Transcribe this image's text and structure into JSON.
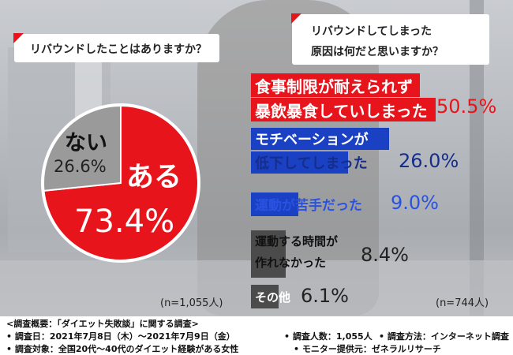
{
  "question_left": "リバウンドしたことはありますか？",
  "question_right_line1": "リバウンドしてしまった",
  "question_right_line2": "原因は何だと思いますか？",
  "colors": {
    "accent_red": "#e8141c",
    "blue": "#1a40c4",
    "gray": "#9a9a9a",
    "dark_gray": "#4b4b4b",
    "title_blue": "#162e8a"
  },
  "chart_data": [
    {
      "type": "pie",
      "question": "リバウンドしたことはありますか？",
      "labels": [
        "ある",
        "ない"
      ],
      "values": [
        73.4,
        26.6
      ],
      "value_labels": [
        "73.4%",
        "26.6%"
      ],
      "n_label": "(n=1,055人)"
    },
    {
      "type": "bar",
      "question": "リバウンドしてしまった原因は何だと思いますか？",
      "categories": [
        "食事制限が耐えられず暴飲暴食していしまった",
        "モチベーションが低下してしまった",
        "運動が苦手だった",
        "運動する時間が作れなかった",
        "その他"
      ],
      "category_lines": [
        [
          "食事制限が耐えられず",
          "暴飲暴食していしまった"
        ],
        [
          "モチベーションが",
          "低下してしまった"
        ],
        [
          "運動が苦手だった"
        ],
        [
          "運動する時間が",
          "作れなかった"
        ],
        [
          "その他"
        ]
      ],
      "values": [
        50.5,
        26.0,
        9.0,
        8.4,
        6.1
      ],
      "value_labels": [
        "50.5%",
        "26.0%",
        "9.0%",
        "8.4%",
        "6.1%"
      ],
      "n_label": "(n=744人)"
    }
  ],
  "footer": {
    "line1": "<調査概要：「ダイエット失敗談」に関する調査>",
    "line2_a": "• 調査日：2021年7月8日（木）〜2021年7月9日（金）",
    "line2_b": "• 調査人数：1,055人",
    "line2_c": "• 調査方法：インターネット調査",
    "line3_a": "• 調査対象：全国20代〜40代のダイエット経験がある女性",
    "line3_b": "• モニター提供元：ゼネラルリサーチ"
  }
}
